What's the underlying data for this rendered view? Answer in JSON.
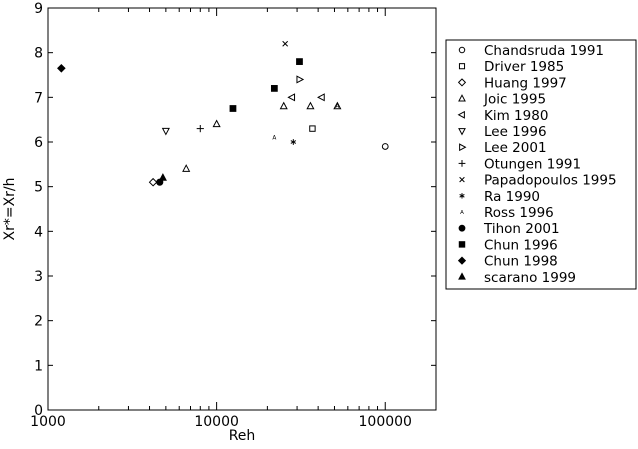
{
  "chart_data": {
    "type": "scatter",
    "xlabel": "Reh",
    "ylabel": "Xr*=Xr/h",
    "xscale": "log",
    "xlim": [
      1000,
      200000
    ],
    "ylim": [
      0,
      9
    ],
    "x_ticks": [
      1000,
      10000,
      100000
    ],
    "x_tick_labels": [
      "1000",
      "10000",
      "100000"
    ],
    "y_ticks": [
      0,
      1,
      2,
      3,
      4,
      5,
      6,
      7,
      8,
      9
    ],
    "y_tick_labels": [
      "0",
      "1",
      "2",
      "3",
      "4",
      "5",
      "6",
      "7",
      "8",
      "9"
    ],
    "grid": false,
    "legend_position": "right",
    "series": [
      {
        "name": "Chandsruda 1991",
        "marker": "open-circle",
        "points": [
          [
            100000,
            5.9
          ]
        ]
      },
      {
        "name": "Driver 1985",
        "marker": "open-square",
        "points": [
          [
            37000,
            6.3
          ]
        ]
      },
      {
        "name": "Huang 1997",
        "marker": "open-diamond",
        "points": [
          [
            4200,
            5.1
          ]
        ]
      },
      {
        "name": "Joic 1995",
        "marker": "open-triangle-up",
        "points": [
          [
            6600,
            5.4
          ],
          [
            10000,
            6.4
          ],
          [
            25000,
            6.8
          ],
          [
            36000,
            6.8
          ],
          [
            52000,
            6.8
          ]
        ]
      },
      {
        "name": "Kim 1980",
        "marker": "open-triangle-left",
        "points": [
          [
            28000,
            7.0
          ],
          [
            42000,
            7.0
          ]
        ]
      },
      {
        "name": "Lee 1996",
        "marker": "open-triangle-down",
        "points": [
          [
            5000,
            6.25
          ]
        ]
      },
      {
        "name": "Lee 2001",
        "marker": "open-triangle-right",
        "points": [
          [
            31000,
            7.4
          ]
        ]
      },
      {
        "name": "Otungen 1991",
        "marker": "plus",
        "points": [
          [
            8000,
            6.3
          ]
        ]
      },
      {
        "name": "Papadopoulos 1995",
        "marker": "cross",
        "points": [
          [
            25500,
            8.2
          ]
        ]
      },
      {
        "name": "Ra 1990",
        "marker": "asterisk",
        "points": [
          [
            28500,
            6.0
          ]
        ]
      },
      {
        "name": "Ross 1996",
        "marker": "letter-A",
        "points": [
          [
            22000,
            6.1
          ],
          [
            52000,
            6.8
          ]
        ]
      },
      {
        "name": "Tihon 2001",
        "marker": "filled-circle",
        "points": [
          [
            4600,
            5.1
          ]
        ]
      },
      {
        "name": "Chun 1996",
        "marker": "filled-square",
        "points": [
          [
            12500,
            6.75
          ],
          [
            22000,
            7.2
          ],
          [
            31000,
            7.8
          ]
        ]
      },
      {
        "name": "Chun 1998",
        "marker": "filled-diamond",
        "points": [
          [
            1200,
            7.65
          ]
        ]
      },
      {
        "name": "scarano 1999",
        "marker": "filled-triangle-up",
        "points": [
          [
            4800,
            5.2
          ]
        ]
      }
    ]
  }
}
